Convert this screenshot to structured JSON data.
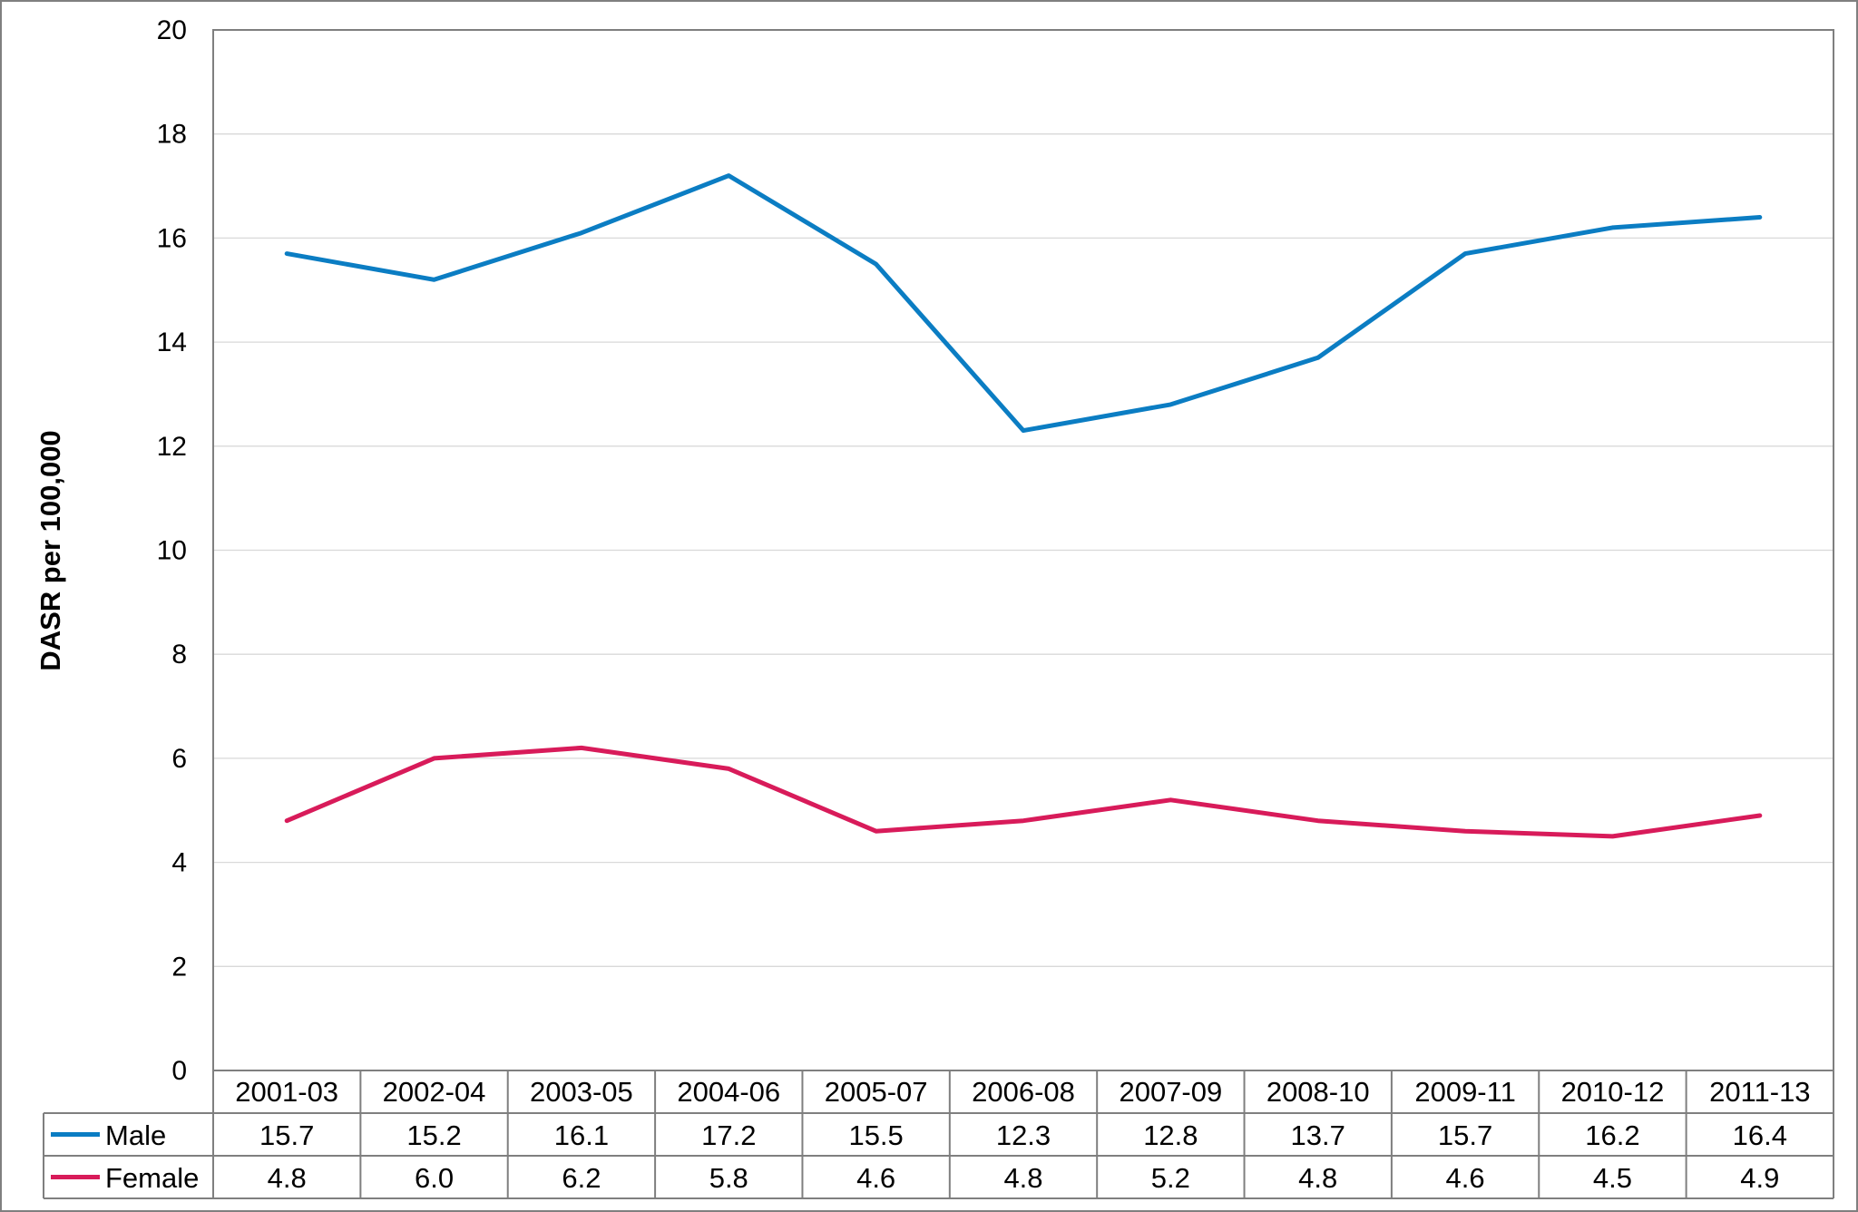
{
  "chart_data": {
    "type": "line",
    "ylabel": "DASR per 100,000",
    "ylim": [
      0,
      20
    ],
    "yticks": [
      0,
      2,
      4,
      6,
      8,
      10,
      12,
      14,
      16,
      18,
      20
    ],
    "grid": true,
    "legend": "data-table",
    "categories": [
      "2001-03",
      "2002-04",
      "2003-05",
      "2004-06",
      "2005-07",
      "2006-08",
      "2007-09",
      "2008-10",
      "2009-11",
      "2010-12",
      "2011-13"
    ],
    "series": [
      {
        "name": "Male",
        "color": "#0b7dc3",
        "values": [
          15.7,
          15.2,
          16.1,
          17.2,
          15.5,
          12.3,
          12.8,
          13.7,
          15.7,
          16.2,
          16.4
        ],
        "labels": [
          "15.7",
          "15.2",
          "16.1",
          "17.2",
          "15.5",
          "12.3",
          "12.8",
          "13.7",
          "15.7",
          "16.2",
          "16.4"
        ]
      },
      {
        "name": "Female",
        "color": "#d81b5a",
        "values": [
          4.8,
          6.0,
          6.2,
          5.8,
          4.6,
          4.8,
          5.2,
          4.8,
          4.6,
          4.5,
          4.9
        ],
        "labels": [
          "4.8",
          "6.0",
          "6.2",
          "5.8",
          "4.6",
          "4.8",
          "5.2",
          "4.8",
          "4.6",
          "4.5",
          "4.9"
        ]
      }
    ]
  }
}
